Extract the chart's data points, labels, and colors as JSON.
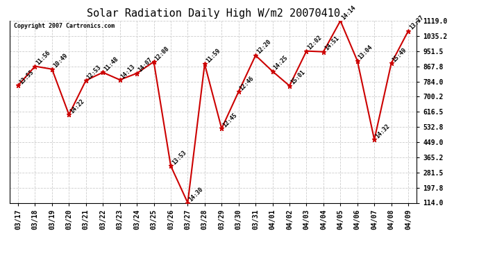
{
  "title": "Solar Radiation Daily High W/m2 20070410",
  "copyright": "Copyright 2007 Cartronics.com",
  "dates": [
    "03/17",
    "03/18",
    "03/19",
    "03/20",
    "03/21",
    "03/22",
    "03/23",
    "03/24",
    "03/25",
    "03/26",
    "03/27",
    "03/28",
    "03/29",
    "03/30",
    "03/31",
    "04/01",
    "04/02",
    "04/03",
    "04/04",
    "04/05",
    "04/06",
    "04/07",
    "04/08",
    "04/09"
  ],
  "values": [
    762,
    868,
    852,
    601,
    790,
    834,
    793,
    829,
    893,
    318,
    114,
    880,
    524,
    728,
    928,
    840,
    760,
    952,
    948,
    1119,
    898,
    463,
    884,
    1063
  ],
  "labels": [
    "13:55",
    "11:56",
    "10:49",
    "14:22",
    "12:53",
    "11:48",
    "14:13",
    "14:07",
    "12:08",
    "13:53",
    "14:30",
    "11:59",
    "12:45",
    "12:46",
    "12:20",
    "14:25",
    "15:01",
    "12:02",
    "14:51",
    "14:14",
    "13:04",
    "14:32",
    "15:49",
    "13:37"
  ],
  "ylim_min": 114.0,
  "ylim_max": 1119.0,
  "yticks": [
    114.0,
    197.8,
    281.5,
    365.2,
    449.0,
    532.8,
    616.5,
    700.2,
    784.0,
    867.8,
    951.5,
    1035.2,
    1119.0
  ],
  "line_color": "#cc0000",
  "marker_color": "#cc0000",
  "bg_color": "#ffffff",
  "grid_color": "#cccccc",
  "title_fontsize": 11,
  "label_fontsize": 6,
  "tick_fontsize": 7,
  "copyright_fontsize": 6
}
